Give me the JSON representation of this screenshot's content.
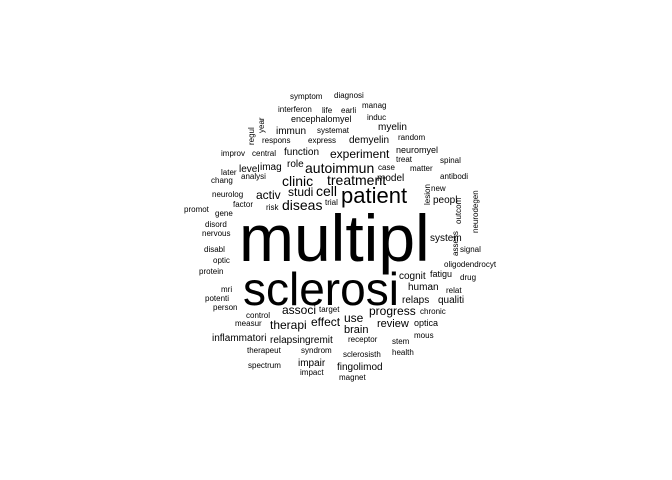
{
  "words": [
    {
      "text": "multipl",
      "level": 10
    },
    {
      "text": "sclerosi",
      "level": 9
    },
    {
      "text": "patient",
      "level": 6
    },
    {
      "text": "autoimmun",
      "level": 4
    },
    {
      "text": "cell",
      "level": 4
    },
    {
      "text": "treatment",
      "level": 4
    },
    {
      "text": "clinic",
      "level": 4
    },
    {
      "text": "diseas",
      "level": 4
    },
    {
      "text": "experiment",
      "level": 3
    },
    {
      "text": "activ",
      "level": 3
    },
    {
      "text": "studi",
      "level": 3
    },
    {
      "text": "associ",
      "level": 3
    },
    {
      "text": "use",
      "level": 3
    },
    {
      "text": "progress",
      "level": 3
    },
    {
      "text": "therapi",
      "level": 3
    },
    {
      "text": "effect",
      "level": 3
    },
    {
      "text": "review",
      "level": 3
    },
    {
      "text": "brain",
      "level": 3
    },
    {
      "text": "function",
      "level": 2
    },
    {
      "text": "role",
      "level": 2
    },
    {
      "text": "model",
      "level": 2
    },
    {
      "text": "cognit",
      "level": 2
    },
    {
      "text": "human",
      "level": 2
    },
    {
      "text": "myelin",
      "level": 2
    },
    {
      "text": "demyelin",
      "level": 2
    },
    {
      "text": "imag",
      "level": 2
    },
    {
      "text": "level",
      "level": 2
    },
    {
      "text": "immun",
      "level": 2
    },
    {
      "text": "system",
      "level": 2
    },
    {
      "text": "peopl",
      "level": 2
    },
    {
      "text": "inflammatori",
      "level": 2
    },
    {
      "text": "relapsingremit",
      "level": 2
    },
    {
      "text": "impair",
      "level": 2
    },
    {
      "text": "fingolimod",
      "level": 2
    },
    {
      "text": "relaps",
      "level": 2
    },
    {
      "text": "qualiti",
      "level": 2
    },
    {
      "text": "fatigu",
      "level": 2
    },
    {
      "text": "optica",
      "level": 2
    },
    {
      "text": "neuromyel",
      "level": 2
    },
    {
      "text": "encephalomyel",
      "level": 2
    },
    {
      "text": "symptom",
      "level": 1
    },
    {
      "text": "diagnosi",
      "level": 1
    },
    {
      "text": "interferon",
      "level": 1
    },
    {
      "text": "life",
      "level": 1
    },
    {
      "text": "earli",
      "level": 1
    },
    {
      "text": "manag",
      "level": 1
    },
    {
      "text": "induc",
      "level": 1
    },
    {
      "text": "year",
      "level": 1
    },
    {
      "text": "regul",
      "level": 1
    },
    {
      "text": "systemat",
      "level": 1
    },
    {
      "text": "respons",
      "level": 1
    },
    {
      "text": "express",
      "level": 1
    },
    {
      "text": "random",
      "level": 1
    },
    {
      "text": "improv",
      "level": 1
    },
    {
      "text": "central",
      "level": 1
    },
    {
      "text": "treat",
      "level": 1
    },
    {
      "text": "spinal",
      "level": 1
    },
    {
      "text": "later",
      "level": 1
    },
    {
      "text": "case",
      "level": 1
    },
    {
      "text": "matter",
      "level": 1
    },
    {
      "text": "chang",
      "level": 1
    },
    {
      "text": "analysi",
      "level": 1
    },
    {
      "text": "antibodi",
      "level": 1
    },
    {
      "text": "lesion",
      "level": 1
    },
    {
      "text": "new",
      "level": 1
    },
    {
      "text": "neurolog",
      "level": 1
    },
    {
      "text": "factor",
      "level": 1
    },
    {
      "text": "risk",
      "level": 1
    },
    {
      "text": "trial",
      "level": 1
    },
    {
      "text": "outcom",
      "level": 1
    },
    {
      "text": "neurodegen",
      "level": 1
    },
    {
      "text": "promot",
      "level": 1
    },
    {
      "text": "gene",
      "level": 1
    },
    {
      "text": "disord",
      "level": 1
    },
    {
      "text": "nervous",
      "level": 1
    },
    {
      "text": "assess",
      "level": 1
    },
    {
      "text": "signal",
      "level": 1
    },
    {
      "text": "disabl",
      "level": 1
    },
    {
      "text": "oligodendrocyt",
      "level": 1
    },
    {
      "text": "optic",
      "level": 1
    },
    {
      "text": "protein",
      "level": 1
    },
    {
      "text": "drug",
      "level": 1
    },
    {
      "text": "mri",
      "level": 1
    },
    {
      "text": "relat",
      "level": 1
    },
    {
      "text": "potenti",
      "level": 1
    },
    {
      "text": "person",
      "level": 1
    },
    {
      "text": "target",
      "level": 1
    },
    {
      "text": "chronic",
      "level": 1
    },
    {
      "text": "control",
      "level": 1
    },
    {
      "text": "measur",
      "level": 1
    },
    {
      "text": "mous",
      "level": 1
    },
    {
      "text": "receptor",
      "level": 1
    },
    {
      "text": "stem",
      "level": 1
    },
    {
      "text": "therapeut",
      "level": 1
    },
    {
      "text": "syndrom",
      "level": 1
    },
    {
      "text": "sclerosisth",
      "level": 1
    },
    {
      "text": "health",
      "level": 1
    },
    {
      "text": "spectrum",
      "level": 1
    },
    {
      "text": "impact",
      "level": 1
    },
    {
      "text": "magnet",
      "level": 1
    }
  ]
}
